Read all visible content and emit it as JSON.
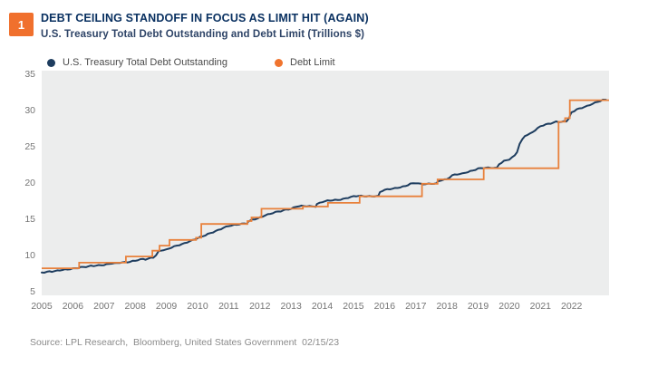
{
  "header": {
    "badge": "1",
    "title": "DEBT CEILING STANDOFF IN FOCUS AS LIMIT HIT (AGAIN)",
    "subtitle": "U.S. Treasury Total Debt Outstanding and Debt Limit (Trillions $)"
  },
  "legend": {
    "items": [
      {
        "label": "U.S. Treasury Total Debt Outstanding",
        "color": "#1E3D5F",
        "marker": "circle"
      },
      {
        "label": "Debt Limit",
        "color": "#F0742E",
        "marker": "circle"
      }
    ]
  },
  "source": "Source: LPL Research,  Bloomberg, United States Government  02/15/23",
  "colors": {
    "badge_bg": "#F0702D",
    "title": "#0A3161",
    "plot_bg": "#ECEDED",
    "tick_label": "#757575",
    "debt_line": "#1E3D5F",
    "limit_line": "#E8813C"
  },
  "chart_data": {
    "type": "line",
    "title": "DEBT CEILING STANDOFF IN FOCUS AS LIMIT HIT (AGAIN)",
    "subtitle": "U.S. Treasury Total Debt Outstanding and Debt Limit (Trillions $)",
    "xlabel": "",
    "ylabel": "Trillions $",
    "xlim": [
      2005,
      2023.2
    ],
    "ylim": [
      4.45,
      35.45
    ],
    "grid": false,
    "legend_position": "top-left",
    "xticks": [
      "2005",
      "2006",
      "2007",
      "2008",
      "2009",
      "2010",
      "2011",
      "2012",
      "2013",
      "2014",
      "2015",
      "2016",
      "2017",
      "2018",
      "2019",
      "2020",
      "2021",
      "2022"
    ],
    "yticks": [
      5,
      10,
      15,
      20,
      25,
      30,
      35
    ],
    "series": [
      {
        "name": "U.S. Treasury Total Debt Outstanding",
        "type": "line",
        "color": "#1E3D5F",
        "points": [
          [
            2005.0,
            7.6
          ],
          [
            2005.08,
            7.65
          ],
          [
            2005.17,
            7.71
          ],
          [
            2005.25,
            7.78
          ],
          [
            2005.33,
            7.77
          ],
          [
            2005.42,
            7.79
          ],
          [
            2005.5,
            7.84
          ],
          [
            2005.58,
            7.89
          ],
          [
            2005.67,
            7.93
          ],
          [
            2005.75,
            7.98
          ],
          [
            2005.83,
            8.03
          ],
          [
            2005.92,
            8.1
          ],
          [
            2006.0,
            8.17
          ],
          [
            2006.08,
            8.23
          ],
          [
            2006.17,
            8.27
          ],
          [
            2006.25,
            8.35
          ],
          [
            2006.33,
            8.33
          ],
          [
            2006.42,
            8.36
          ],
          [
            2006.5,
            8.42
          ],
          [
            2006.58,
            8.48
          ],
          [
            2006.67,
            8.51
          ],
          [
            2006.75,
            8.58
          ],
          [
            2006.83,
            8.61
          ],
          [
            2006.92,
            8.65
          ],
          [
            2007.0,
            8.68
          ],
          [
            2007.08,
            8.73
          ],
          [
            2007.17,
            8.78
          ],
          [
            2007.25,
            8.85
          ],
          [
            2007.33,
            8.83
          ],
          [
            2007.42,
            8.87
          ],
          [
            2007.5,
            8.95
          ],
          [
            2007.58,
            9.0
          ],
          [
            2007.67,
            9.04
          ],
          [
            2007.75,
            9.06
          ],
          [
            2007.83,
            9.12
          ],
          [
            2007.92,
            9.19
          ],
          [
            2008.0,
            9.23
          ],
          [
            2008.08,
            9.3
          ],
          [
            2008.17,
            9.37
          ],
          [
            2008.25,
            9.44
          ],
          [
            2008.33,
            9.39
          ],
          [
            2008.42,
            9.49
          ],
          [
            2008.5,
            9.65
          ],
          [
            2008.58,
            9.72
          ],
          [
            2008.67,
            10.02
          ],
          [
            2008.75,
            10.53
          ],
          [
            2008.83,
            10.66
          ],
          [
            2008.92,
            10.7
          ],
          [
            2009.0,
            10.71
          ],
          [
            2009.17,
            11.04
          ],
          [
            2009.33,
            11.32
          ],
          [
            2009.5,
            11.55
          ],
          [
            2009.67,
            11.79
          ],
          [
            2009.83,
            12.01
          ],
          [
            2010.0,
            12.31
          ],
          [
            2010.17,
            12.62
          ],
          [
            2010.33,
            12.94
          ],
          [
            2010.5,
            13.2
          ],
          [
            2010.67,
            13.44
          ],
          [
            2010.83,
            13.72
          ],
          [
            2011.0,
            14.03
          ],
          [
            2011.17,
            14.19
          ],
          [
            2011.33,
            14.29
          ],
          [
            2011.5,
            14.34
          ],
          [
            2011.58,
            14.34
          ],
          [
            2011.63,
            14.58
          ],
          [
            2011.75,
            14.85
          ],
          [
            2011.92,
            15.06
          ],
          [
            2012.0,
            15.22
          ],
          [
            2012.17,
            15.53
          ],
          [
            2012.33,
            15.69
          ],
          [
            2012.5,
            15.89
          ],
          [
            2012.67,
            16.05
          ],
          [
            2012.83,
            16.3
          ],
          [
            2013.0,
            16.43
          ],
          [
            2013.17,
            16.71
          ],
          [
            2013.33,
            16.74
          ],
          [
            2013.5,
            16.74
          ],
          [
            2013.67,
            16.74
          ],
          [
            2013.79,
            16.75
          ],
          [
            2013.83,
            17.08
          ],
          [
            2013.92,
            17.22
          ],
          [
            2014.0,
            17.35
          ],
          [
            2014.17,
            17.47
          ],
          [
            2014.33,
            17.55
          ],
          [
            2014.5,
            17.63
          ],
          [
            2014.67,
            17.78
          ],
          [
            2014.83,
            17.94
          ],
          [
            2015.0,
            18.08
          ],
          [
            2015.17,
            18.15
          ],
          [
            2015.33,
            18.15
          ],
          [
            2015.5,
            18.15
          ],
          [
            2015.67,
            18.15
          ],
          [
            2015.8,
            18.15
          ],
          [
            2015.85,
            18.65
          ],
          [
            2015.92,
            18.83
          ],
          [
            2016.0,
            18.96
          ],
          [
            2016.17,
            19.13
          ],
          [
            2016.33,
            19.26
          ],
          [
            2016.5,
            19.38
          ],
          [
            2016.67,
            19.51
          ],
          [
            2016.83,
            19.81
          ],
          [
            2017.0,
            19.95
          ],
          [
            2017.17,
            19.85
          ],
          [
            2017.33,
            19.84
          ],
          [
            2017.5,
            19.84
          ],
          [
            2017.67,
            19.84
          ],
          [
            2017.71,
            20.16
          ],
          [
            2017.83,
            20.35
          ],
          [
            2017.92,
            20.44
          ],
          [
            2018.0,
            20.49
          ],
          [
            2018.17,
            21.06
          ],
          [
            2018.33,
            21.15
          ],
          [
            2018.5,
            21.21
          ],
          [
            2018.67,
            21.46
          ],
          [
            2018.83,
            21.7
          ],
          [
            2019.0,
            21.97
          ],
          [
            2019.17,
            22.03
          ],
          [
            2019.33,
            22.02
          ],
          [
            2019.5,
            22.02
          ],
          [
            2019.6,
            22.02
          ],
          [
            2019.67,
            22.56
          ],
          [
            2019.83,
            23.01
          ],
          [
            2020.0,
            23.22
          ],
          [
            2020.17,
            23.69
          ],
          [
            2020.25,
            24.22
          ],
          [
            2020.33,
            25.3
          ],
          [
            2020.42,
            25.95
          ],
          [
            2020.5,
            26.48
          ],
          [
            2020.67,
            26.8
          ],
          [
            2020.83,
            27.26
          ],
          [
            2021.0,
            27.75
          ],
          [
            2021.17,
            28.0
          ],
          [
            2021.33,
            28.18
          ],
          [
            2021.5,
            28.43
          ],
          [
            2021.67,
            28.43
          ],
          [
            2021.83,
            28.43
          ],
          [
            2021.92,
            28.91
          ],
          [
            2021.96,
            29.3
          ],
          [
            2022.0,
            29.68
          ],
          [
            2022.17,
            30.14
          ],
          [
            2022.33,
            30.37
          ],
          [
            2022.5,
            30.57
          ],
          [
            2022.67,
            30.85
          ],
          [
            2022.83,
            31.12
          ],
          [
            2023.0,
            31.42
          ],
          [
            2023.1,
            31.46
          ]
        ]
      },
      {
        "name": "Debt Limit",
        "type": "step",
        "color": "#E8813C",
        "points": [
          [
            2005.0,
            8.184
          ],
          [
            2006.2,
            8.965
          ],
          [
            2007.7,
            9.815
          ],
          [
            2008.55,
            10.615
          ],
          [
            2008.78,
            11.315
          ],
          [
            2009.1,
            12.104
          ],
          [
            2009.95,
            12.394
          ],
          [
            2010.12,
            14.294
          ],
          [
            2011.6,
            14.694
          ],
          [
            2011.73,
            15.194
          ],
          [
            2012.05,
            16.394
          ],
          [
            2013.38,
            16.699
          ],
          [
            2014.18,
            17.212
          ],
          [
            2015.2,
            18.113
          ],
          [
            2017.2,
            19.847
          ],
          [
            2017.7,
            20.456
          ],
          [
            2019.18,
            21.988
          ],
          [
            2021.58,
            28.401
          ],
          [
            2021.79,
            28.9
          ],
          [
            2021.94,
            31.381
          ],
          [
            2023.2,
            31.381
          ]
        ]
      }
    ]
  }
}
